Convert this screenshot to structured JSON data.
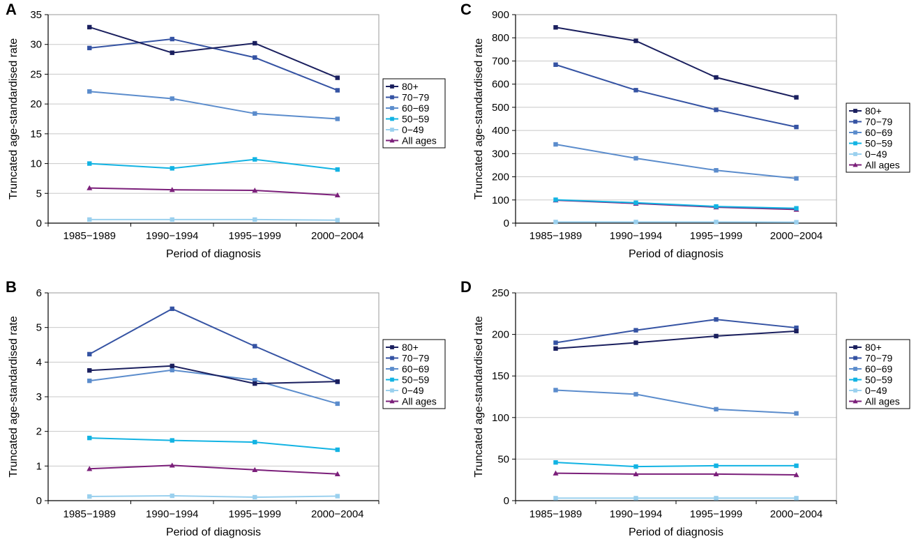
{
  "legend_labels": [
    "80+",
    "70−79",
    "60−69",
    "50−59",
    "0−49",
    "All ages"
  ],
  "series_colors": [
    "#1a1f5e",
    "#3553a3",
    "#5b8ccc",
    "#12b3e3",
    "#9ad0ee",
    "#7b1f7a"
  ],
  "series_markers": [
    "square",
    "square",
    "square",
    "square",
    "square",
    "triangle"
  ],
  "chart_data": [
    {
      "panel": "A",
      "type": "line",
      "xlabel": "Period of diagnosis",
      "ylabel": "Truncated age-standardised rate",
      "categories": [
        "1985−1989",
        "1990−1994",
        "1995−1999",
        "2000−2004"
      ],
      "ylim": [
        0,
        35
      ],
      "yticks": [
        0,
        5,
        10,
        15,
        20,
        25,
        30,
        35
      ],
      "grid": true,
      "legend_position": "right",
      "series": [
        {
          "name": "80+",
          "values": [
            32.9,
            28.6,
            30.2,
            24.4
          ]
        },
        {
          "name": "70−79",
          "values": [
            29.4,
            30.9,
            27.8,
            22.3
          ]
        },
        {
          "name": "60−69",
          "values": [
            22.1,
            20.9,
            18.4,
            17.5
          ]
        },
        {
          "name": "50−59",
          "values": [
            10.0,
            9.2,
            10.7,
            9.0
          ]
        },
        {
          "name": "0−49",
          "values": [
            0.6,
            0.6,
            0.6,
            0.5
          ]
        },
        {
          "name": "All ages",
          "values": [
            5.9,
            5.6,
            5.5,
            4.7
          ]
        }
      ]
    },
    {
      "panel": "B",
      "type": "line",
      "xlabel": "Period of diagnosis",
      "ylabel": "Truncated age-standardised rate",
      "categories": [
        "1985−1989",
        "1990−1994",
        "1995−1999",
        "2000−2004"
      ],
      "ylim": [
        0,
        6
      ],
      "yticks": [
        0,
        1,
        2,
        3,
        4,
        5,
        6
      ],
      "grid": true,
      "legend_position": "right",
      "series": [
        {
          "name": "80+",
          "values": [
            3.76,
            3.89,
            3.38,
            3.44
          ]
        },
        {
          "name": "70−79",
          "values": [
            4.23,
            5.54,
            4.46,
            3.43
          ]
        },
        {
          "name": "60−69",
          "values": [
            3.46,
            3.77,
            3.48,
            2.8
          ]
        },
        {
          "name": "50−59",
          "values": [
            1.81,
            1.74,
            1.69,
            1.47
          ]
        },
        {
          "name": "0−49",
          "values": [
            0.12,
            0.14,
            0.1,
            0.13
          ]
        },
        {
          "name": "All ages",
          "values": [
            0.92,
            1.02,
            0.89,
            0.77
          ]
        }
      ]
    },
    {
      "panel": "C",
      "type": "line",
      "xlabel": "Period of diagnosis",
      "ylabel": "Truncated age-standardised rate",
      "categories": [
        "1985−1989",
        "1990−1994",
        "1995−1999",
        "2000−2004"
      ],
      "ylim": [
        0,
        900
      ],
      "yticks": [
        0,
        100,
        200,
        300,
        400,
        500,
        600,
        700,
        800,
        900
      ],
      "grid": true,
      "legend_position": "right",
      "series": [
        {
          "name": "80+",
          "values": [
            845,
            787,
            629,
            543
          ]
        },
        {
          "name": "70−79",
          "values": [
            684,
            574,
            489,
            415
          ]
        },
        {
          "name": "60−69",
          "values": [
            340,
            280,
            228,
            193
          ]
        },
        {
          "name": "50−59",
          "values": [
            101,
            88,
            72,
            64
          ]
        },
        {
          "name": "0−49",
          "values": [
            5,
            5,
            5,
            4
          ]
        },
        {
          "name": "All ages",
          "values": [
            99,
            85,
            69,
            59
          ]
        }
      ]
    },
    {
      "panel": "D",
      "type": "line",
      "xlabel": "Period of diagnosis",
      "ylabel": "Truncated age-standardised rate",
      "categories": [
        "1985−1989",
        "1990−1994",
        "1995−1999",
        "2000−2004"
      ],
      "ylim": [
        0,
        250
      ],
      "yticks": [
        0,
        50,
        100,
        150,
        200,
        250
      ],
      "grid": true,
      "legend_position": "right",
      "series": [
        {
          "name": "80+",
          "values": [
            183,
            190,
            198,
            204
          ]
        },
        {
          "name": "70−79",
          "values": [
            190,
            205,
            218,
            208
          ]
        },
        {
          "name": "60−69",
          "values": [
            133,
            128,
            110,
            105
          ]
        },
        {
          "name": "50−59",
          "values": [
            46,
            41,
            42,
            42
          ]
        },
        {
          "name": "0−49",
          "values": [
            3,
            3,
            3,
            3
          ]
        },
        {
          "name": "All ages",
          "values": [
            33,
            32,
            32,
            31
          ]
        }
      ]
    }
  ]
}
